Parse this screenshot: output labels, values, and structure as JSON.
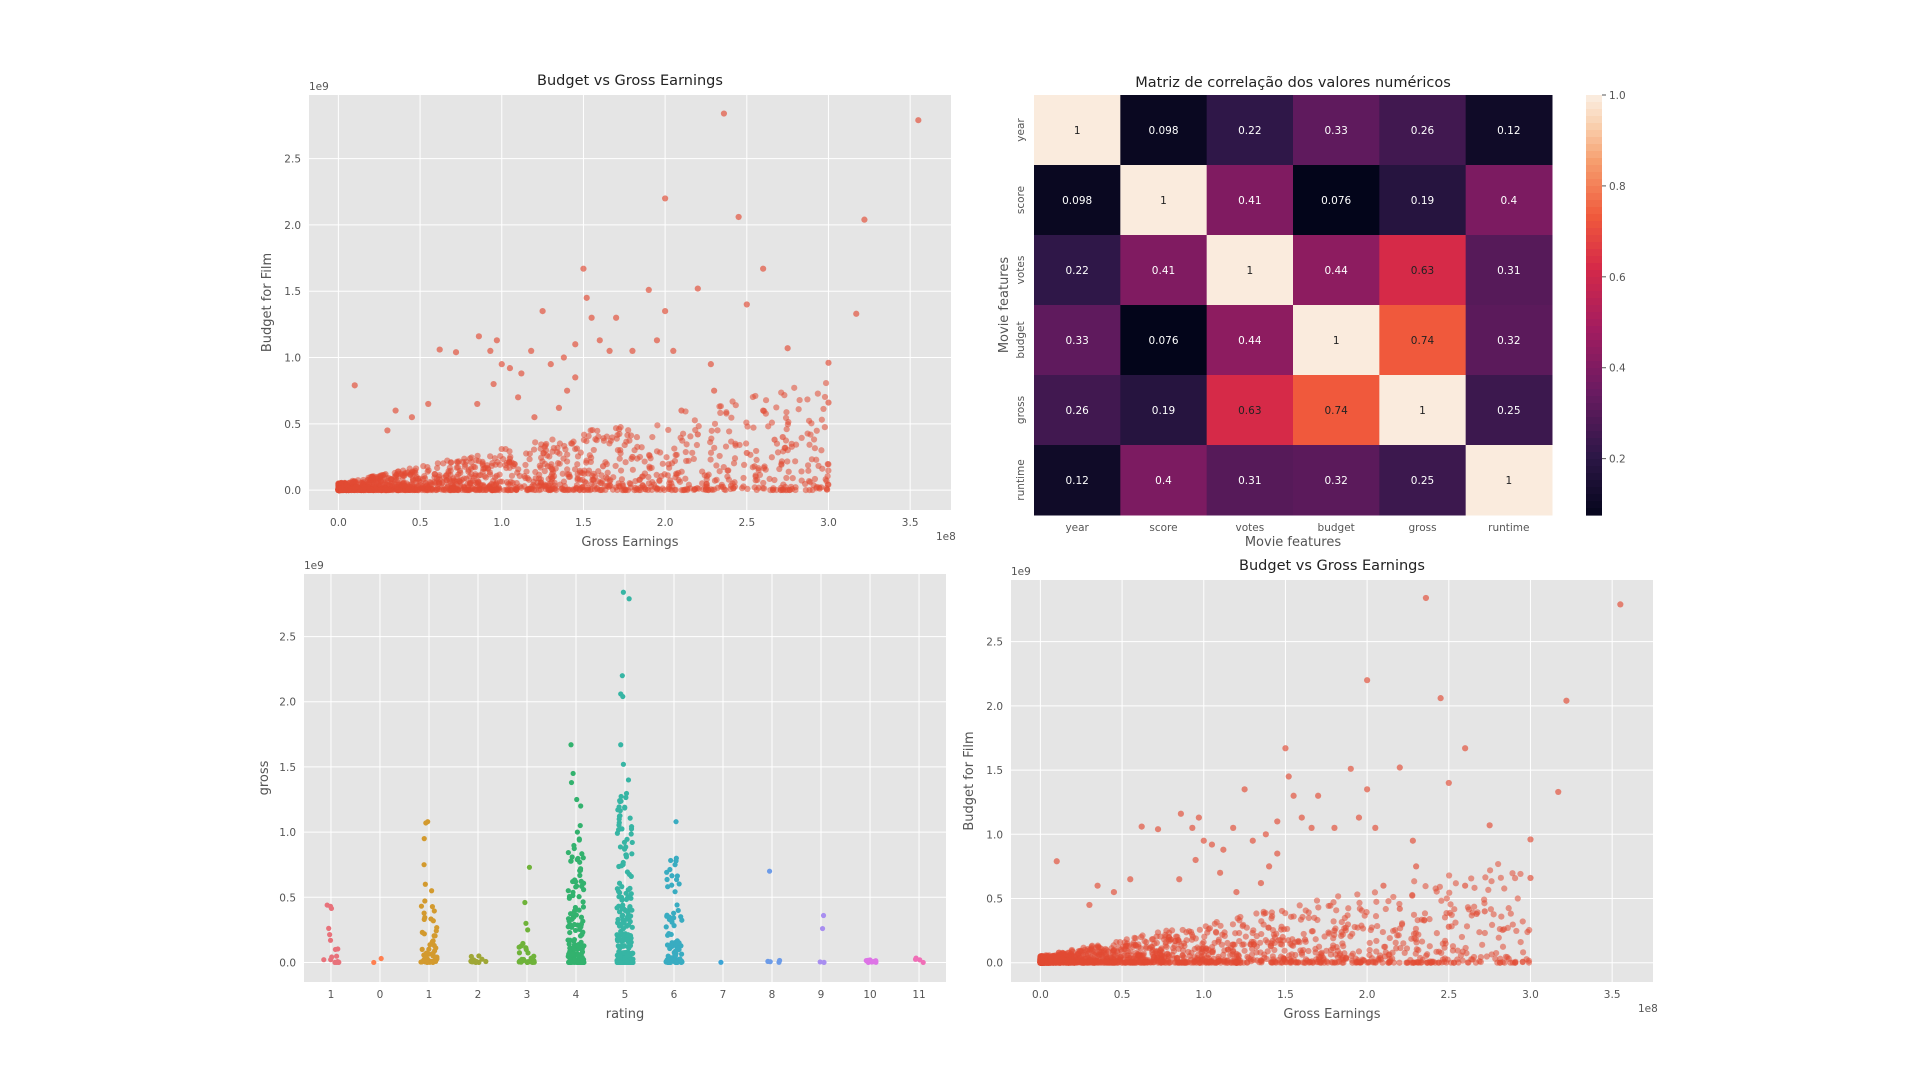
{
  "colors": {
    "panel_bg": "#e5e5e5",
    "grid": "#ffffff",
    "scatter_point": "#e24a33",
    "tick_text": "#555555",
    "title_text": "#222222"
  },
  "chart_data": [
    {
      "id": "scatter_top",
      "type": "scatter",
      "title": "Budget vs Gross Earnings",
      "xlabel": "Gross Earnings",
      "ylabel": "Budget for Film",
      "x_offset_text": "1e8",
      "y_offset_text": "1e9",
      "xlim": [
        -0.18,
        3.75
      ],
      "ylim": [
        -0.15,
        2.98
      ],
      "xticks": [
        "0.0",
        "0.5",
        "1.0",
        "1.5",
        "2.0",
        "2.5",
        "3.0",
        "3.5"
      ],
      "yticks": [
        "0.0",
        "0.5",
        "1.0",
        "1.5",
        "2.0",
        "2.5"
      ],
      "points": [
        [
          0.1,
          0.79
        ],
        [
          0.62,
          1.06
        ],
        [
          0.72,
          1.04
        ],
        [
          0.86,
          1.16
        ],
        [
          0.93,
          1.05
        ],
        [
          0.97,
          1.13
        ],
        [
          1.0,
          0.95
        ],
        [
          1.05,
          0.92
        ],
        [
          1.12,
          0.88
        ],
        [
          1.18,
          1.05
        ],
        [
          1.25,
          1.35
        ],
        [
          1.3,
          0.95
        ],
        [
          1.38,
          1.0
        ],
        [
          1.45,
          1.1
        ],
        [
          1.5,
          1.67
        ],
        [
          1.52,
          1.45
        ],
        [
          1.55,
          1.3
        ],
        [
          1.6,
          1.13
        ],
        [
          1.66,
          1.05
        ],
        [
          1.7,
          1.3
        ],
        [
          1.8,
          1.05
        ],
        [
          1.9,
          1.51
        ],
        [
          1.95,
          1.13
        ],
        [
          2.0,
          2.2
        ],
        [
          2.0,
          1.35
        ],
        [
          2.05,
          1.05
        ],
        [
          2.2,
          1.52
        ],
        [
          2.28,
          0.95
        ],
        [
          2.36,
          2.84
        ],
        [
          2.45,
          2.06
        ],
        [
          2.5,
          1.4
        ],
        [
          2.6,
          1.67
        ],
        [
          2.75,
          1.07
        ],
        [
          2.72,
          0.4
        ],
        [
          2.67,
          0.38
        ],
        [
          2.6,
          0.6
        ],
        [
          2.5,
          0.28
        ],
        [
          3.0,
          0.96
        ],
        [
          3.0,
          0.66
        ],
        [
          3.17,
          1.33
        ],
        [
          3.22,
          2.04
        ],
        [
          3.55,
          2.79
        ],
        [
          1.62,
          0.18
        ],
        [
          1.8,
          0.25
        ],
        [
          2.2,
          0.42
        ],
        [
          2.1,
          0.6
        ],
        [
          2.3,
          0.75
        ],
        [
          1.35,
          0.62
        ],
        [
          1.4,
          0.75
        ],
        [
          1.45,
          0.85
        ],
        [
          1.1,
          0.7
        ],
        [
          1.2,
          0.55
        ],
        [
          0.95,
          0.8
        ],
        [
          0.85,
          0.65
        ],
        [
          0.55,
          0.65
        ],
        [
          0.45,
          0.55
        ],
        [
          0.35,
          0.6
        ],
        [
          0.3,
          0.45
        ]
      ],
      "cluster": {
        "x_max": 3.0,
        "y_max": 1.0,
        "count": 1500,
        "seed": 11
      }
    },
    {
      "id": "heatmap",
      "type": "heatmap",
      "title": "Matriz de correlação dos valores numéricos",
      "xlabel": "Movie features",
      "ylabel": "Movie features",
      "labels": [
        "year",
        "score",
        "votes",
        "budget",
        "gross",
        "runtime"
      ],
      "values": [
        [
          1,
          0.098,
          0.22,
          0.33,
          0.26,
          0.12
        ],
        [
          0.098,
          1,
          0.41,
          0.076,
          0.19,
          0.4
        ],
        [
          0.22,
          0.41,
          1,
          0.44,
          0.63,
          0.31
        ],
        [
          0.33,
          0.076,
          0.44,
          1,
          0.74,
          0.32
        ],
        [
          0.26,
          0.19,
          0.63,
          0.74,
          1,
          0.25
        ],
        [
          0.12,
          0.4,
          0.31,
          0.32,
          0.25,
          1
        ]
      ],
      "value_labels": [
        [
          "1",
          "0.098",
          "0.22",
          "0.33",
          "0.26",
          "0.12"
        ],
        [
          "0.098",
          "1",
          "0.41",
          "0.076",
          "0.19",
          "0.4"
        ],
        [
          "0.22",
          "0.41",
          "1",
          "0.44",
          "0.63",
          "0.31"
        ],
        [
          "0.33",
          "0.076",
          "0.44",
          "1",
          "0.74",
          "0.32"
        ],
        [
          "0.26",
          "0.19",
          "0.63",
          "0.74",
          "1",
          "0.25"
        ],
        [
          "0.12",
          "0.4",
          "0.31",
          "0.32",
          "0.25",
          "1"
        ]
      ],
      "colorbar_ticks": [
        "1.0",
        "0.8",
        "0.6",
        "0.4",
        "0.2"
      ],
      "colorbar_range": [
        0.076,
        1.0
      ]
    },
    {
      "id": "strip",
      "type": "scatter",
      "title": "",
      "xlabel": "rating",
      "ylabel": "gross",
      "y_offset_text": "1e9",
      "ylim": [
        -0.15,
        2.98
      ],
      "xticks": [
        "1",
        "0",
        "1",
        "2",
        "3",
        "4",
        "5",
        "6",
        "7",
        "8",
        "9",
        "10",
        "11"
      ],
      "yticks": [
        "0.0",
        "0.5",
        "1.0",
        "1.5",
        "2.0",
        "2.5"
      ],
      "categories": [
        {
          "color": "#e8727b",
          "count": 14,
          "max": 0.45,
          "outliers": [
            0.44,
            0.43,
            0.17
          ]
        },
        {
          "color": "#ff7f50",
          "count": 1,
          "max": 0.02,
          "outliers": [
            0.03
          ]
        },
        {
          "color": "#d39a2e",
          "count": 50,
          "max": 0.5,
          "outliers": [
            1.08,
            1.07,
            0.95,
            0.75,
            0.6,
            0.55
          ]
        },
        {
          "color": "#9fa736",
          "count": 10,
          "max": 0.06,
          "outliers": [
            0.05
          ]
        },
        {
          "color": "#6fb33a",
          "count": 24,
          "max": 0.15,
          "outliers": [
            0.73,
            0.46,
            0.3,
            0.25
          ]
        },
        {
          "color": "#33b26e",
          "count": 160,
          "max": 0.95,
          "outliers": [
            1.67,
            1.45,
            1.38,
            1.25,
            1.2,
            1.05,
            1.0
          ]
        },
        {
          "color": "#37b5a4",
          "count": 220,
          "max": 1.3,
          "outliers": [
            2.84,
            2.79,
            2.2,
            2.06,
            2.04,
            1.67,
            1.52,
            1.4
          ]
        },
        {
          "color": "#39acc1",
          "count": 90,
          "max": 0.8,
          "outliers": [
            1.08,
            0.8,
            0.75
          ]
        },
        {
          "color": "#3aa4d6",
          "count": 1,
          "max": 0.01,
          "outliers": []
        },
        {
          "color": "#6c9be8",
          "count": 4,
          "max": 0.02,
          "outliers": [
            0.7
          ]
        },
        {
          "color": "#a88ef0",
          "count": 2,
          "max": 0.02,
          "outliers": [
            0.36,
            0.26
          ]
        },
        {
          "color": "#dd74e6",
          "count": 8,
          "max": 0.03,
          "outliers": []
        },
        {
          "color": "#f06fb7",
          "count": 3,
          "max": 0.04,
          "outliers": [
            0.02
          ]
        }
      ]
    },
    {
      "id": "scatter_bottom",
      "type": "scatter",
      "title": "Budget vs Gross Earnings",
      "xlabel": "Gross Earnings",
      "ylabel": "Budget for Film",
      "x_offset_text": "1e8",
      "y_offset_text": "1e9",
      "xlim": [
        -0.18,
        3.75
      ],
      "ylim": [
        -0.15,
        2.98
      ],
      "xticks": [
        "0.0",
        "0.5",
        "1.0",
        "1.5",
        "2.0",
        "2.5",
        "3.0",
        "3.5"
      ],
      "yticks": [
        "0.0",
        "0.5",
        "1.0",
        "1.5",
        "2.0",
        "2.5"
      ],
      "use_points_of": "scatter_top",
      "cluster": {
        "x_max": 3.0,
        "y_max": 1.0,
        "count": 1500,
        "seed": 23
      }
    }
  ]
}
